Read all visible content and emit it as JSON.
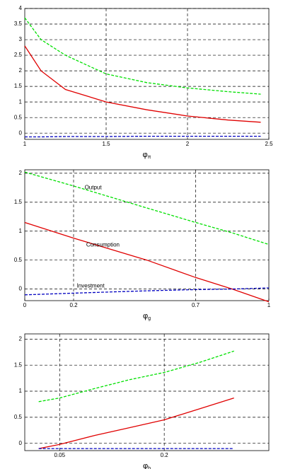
{
  "chart_data": [
    {
      "type": "line",
      "xlabel": "φ",
      "xlabel_sub": "π",
      "xlim": [
        1,
        2.5
      ],
      "xticks": [
        1,
        1.5,
        2,
        2.5
      ],
      "ylim": [
        -0.2,
        4
      ],
      "yticks": [
        0,
        0.5,
        1,
        1.5,
        2,
        2.5,
        3,
        3.5,
        4
      ],
      "grid": true,
      "x": [
        1,
        1.1,
        1.25,
        1.5,
        1.75,
        2,
        2.25,
        2.45
      ],
      "series": [
        {
          "color": "#00e000",
          "dash": true,
          "values": [
            3.7,
            3.0,
            2.5,
            1.9,
            1.62,
            1.45,
            1.33,
            1.25
          ]
        },
        {
          "color": "#e00000",
          "dash": false,
          "values": [
            2.8,
            2.0,
            1.4,
            1.0,
            0.75,
            0.55,
            0.42,
            0.35
          ]
        },
        {
          "color": "#0000c0",
          "dash": true,
          "values": [
            -0.12,
            -0.12,
            -0.11,
            -0.11,
            -0.1,
            -0.1,
            -0.1,
            -0.1
          ]
        }
      ]
    },
    {
      "type": "line",
      "xlabel": "φ",
      "xlabel_sub": "g",
      "xlim": [
        0,
        1
      ],
      "xticks": [
        0,
        0.2,
        0.7,
        1
      ],
      "ylim": [
        -0.2,
        2.06
      ],
      "yticks": [
        0,
        0.5,
        1,
        1.5,
        2
      ],
      "grid": true,
      "x": [
        0,
        0.2,
        0.5,
        0.7,
        0.85,
        1
      ],
      "series": [
        {
          "name": "Output",
          "color": "#00e000",
          "dash": true,
          "values": [
            2.02,
            1.78,
            1.4,
            1.15,
            0.97,
            0.77
          ]
        },
        {
          "name": "Consumption",
          "color": "#e00000",
          "dash": false,
          "values": [
            1.15,
            0.88,
            0.5,
            0.2,
            0.0,
            -0.22
          ]
        },
        {
          "name": "Investment",
          "color": "#0000c0",
          "dash": true,
          "values": [
            -0.1,
            -0.07,
            -0.03,
            -0.01,
            0.0,
            0.02
          ]
        }
      ],
      "annotations": [
        {
          "text": "Output",
          "x": 0.28,
          "y": 1.75
        },
        {
          "text": "Consumption",
          "x": 0.32,
          "y": 0.76
        },
        {
          "text": "Investment",
          "x": 0.27,
          "y": 0.05
        }
      ]
    },
    {
      "type": "line",
      "xlabel": "φ",
      "xlabel_sub": "b",
      "xlim": [
        0,
        0.35
      ],
      "xticks": [
        0.05,
        0.2
      ],
      "ylim": [
        -0.14,
        2.1
      ],
      "yticks": [
        0,
        0.5,
        1,
        1.5,
        2
      ],
      "grid": true,
      "x": [
        0.02,
        0.05,
        0.1,
        0.15,
        0.2,
        0.25,
        0.3
      ],
      "series": [
        {
          "color": "#00e000",
          "dash": true,
          "values": [
            0.8,
            0.87,
            1.05,
            1.22,
            1.36,
            1.55,
            1.77
          ]
        },
        {
          "color": "#e00000",
          "dash": false,
          "values": [
            -0.1,
            -0.02,
            0.15,
            0.3,
            0.45,
            0.66,
            0.87
          ]
        },
        {
          "color": "#0000c0",
          "dash": true,
          "values": [
            -0.1,
            -0.1,
            -0.1,
            -0.1,
            -0.1,
            -0.1,
            -0.1
          ]
        }
      ]
    }
  ]
}
